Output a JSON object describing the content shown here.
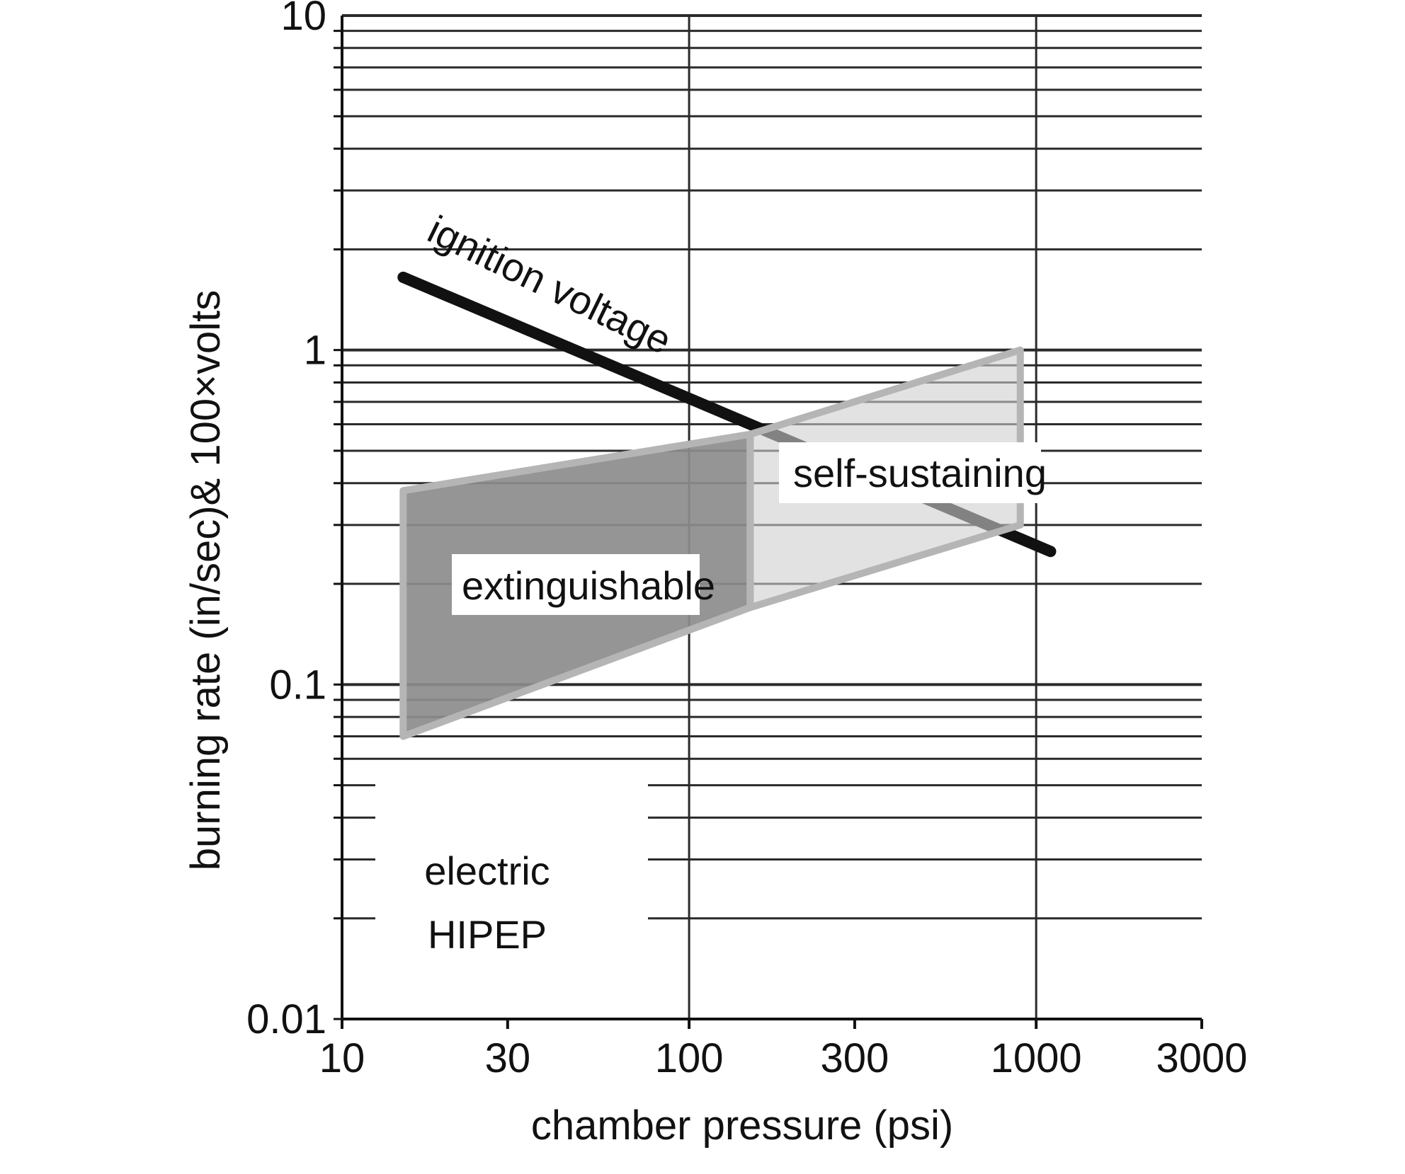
{
  "chart_data": {
    "type": "area",
    "xlabel": "chamber pressure (psi)",
    "ylabel": "burning rate (in/sec)& 100×volts",
    "x_scale": "log",
    "y_scale": "log",
    "xlim": [
      10,
      3000
    ],
    "ylim": [
      0.01,
      10
    ],
    "x_ticks": [
      {
        "value": 10,
        "label": "10"
      },
      {
        "value": 30,
        "label": "30"
      },
      {
        "value": 100,
        "label": "100"
      },
      {
        "value": 300,
        "label": "300"
      },
      {
        "value": 1000,
        "label": "1000"
      },
      {
        "value": 3000,
        "label": "3000"
      }
    ],
    "y_ticks": [
      {
        "value": 10,
        "label": "10"
      },
      {
        "value": 1,
        "label": "1"
      },
      {
        "value": 0.1,
        "label": "0.1"
      },
      {
        "value": 0.01,
        "label": "0.01"
      }
    ],
    "grid": true,
    "series": [
      {
        "name": "ignition voltage",
        "kind": "line",
        "color": "#111111",
        "x": [
          15,
          1100
        ],
        "y": [
          1.65,
          0.25
        ]
      },
      {
        "name": "extinguishable",
        "kind": "region",
        "color": "#8c8c8c",
        "x": [
          15,
          15,
          150,
          150
        ],
        "y": [
          0.07,
          0.38,
          0.56,
          0.17
        ]
      },
      {
        "name": "self-sustaining",
        "kind": "region",
        "color": "#cfcfcf",
        "x": [
          150,
          900,
          900,
          150
        ],
        "y": [
          0.56,
          1.0,
          0.3,
          0.17
        ]
      }
    ],
    "annotations": [
      {
        "text": "ignition voltage",
        "x": 30,
        "y": 1.5
      },
      {
        "text": "self-sustaining",
        "x": 400,
        "y": 0.5
      },
      {
        "text": "extinguishable",
        "x": 45,
        "y": 0.2
      },
      {
        "text": "electric",
        "x": 26,
        "y": 0.026
      },
      {
        "text": "HIPEP",
        "x": 26,
        "y": 0.017
      }
    ]
  }
}
